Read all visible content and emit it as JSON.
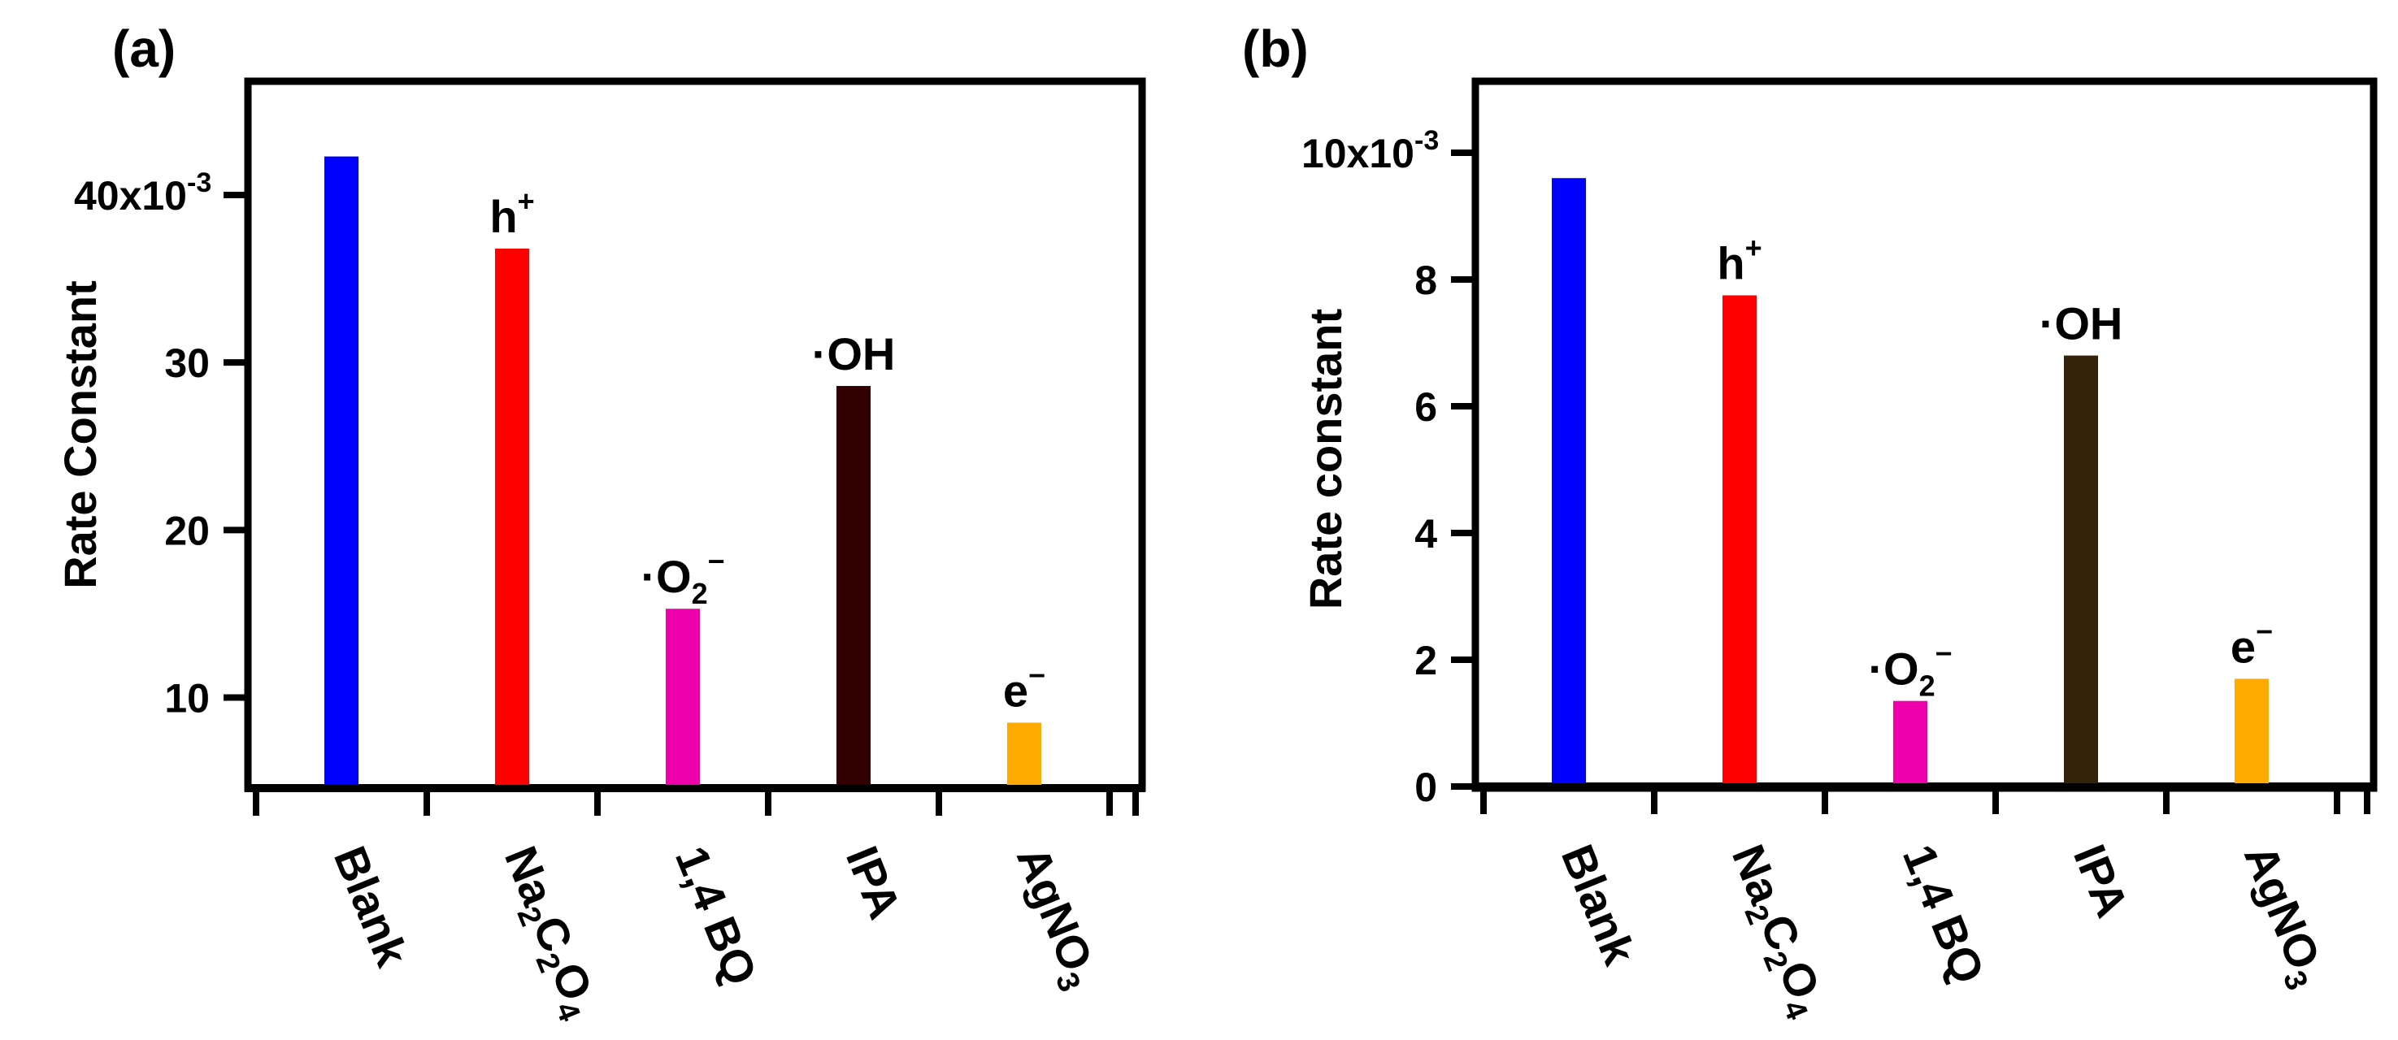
{
  "chart_data": [
    {
      "panel": "(a)",
      "type": "bar",
      "ylabel": "Rate Constant",
      "ylim": [
        4.5,
        46.5
      ],
      "yticks": [
        10,
        20,
        30,
        40
      ],
      "ytick_labels": [
        "10",
        "20",
        "30",
        "40x10"
      ],
      "ytick_exponent": "-3",
      "categories": [
        {
          "base": "Blank",
          "sub": ""
        },
        {
          "base": "Na",
          "sub": "2",
          "base2": "C",
          "sub2": "2",
          "base3": "O",
          "sub3": "4"
        },
        {
          "base": "1,4 BQ",
          "sub": ""
        },
        {
          "base": "IPA",
          "sub": ""
        },
        {
          "base": "AgNO",
          "sub": "3"
        }
      ],
      "values": [
        42.3,
        36.8,
        15.3,
        28.6,
        8.5
      ],
      "colors": [
        "#0000ff",
        "#ff0000",
        "#ee00aa",
        "#330000",
        "#ffaa00"
      ],
      "annotations": [
        {
          "base": "",
          "sup": ""
        },
        {
          "base": "h",
          "sup": "+"
        },
        {
          "base": "·O",
          "sub": "2",
          "sup": "−"
        },
        {
          "base": "·OH",
          "sup": ""
        },
        {
          "base": "e",
          "sup": "−"
        }
      ]
    },
    {
      "panel": "(b)",
      "type": "bar",
      "ylabel": "Rate constant",
      "ylim": [
        0,
        11.2
      ],
      "yticks": [
        0,
        2,
        4,
        6,
        8,
        10
      ],
      "ytick_labels": [
        "0",
        "2",
        "4",
        "6",
        "8",
        "10x10"
      ],
      "ytick_exponent": "-3",
      "categories": [
        {
          "base": "Blank",
          "sub": ""
        },
        {
          "base": "Na",
          "sub": "2",
          "base2": "C",
          "sub2": "2",
          "base3": "O",
          "sub3": "4"
        },
        {
          "base": "1,4 BQ",
          "sub": ""
        },
        {
          "base": "IPA",
          "sub": ""
        },
        {
          "base": "AgNO",
          "sub": "3"
        }
      ],
      "values": [
        9.6,
        7.75,
        1.35,
        6.8,
        1.7
      ],
      "colors": [
        "#0000ff",
        "#ff0000",
        "#ee00aa",
        "#33230a",
        "#ffaa00"
      ],
      "annotations": [
        {
          "base": "",
          "sup": ""
        },
        {
          "base": "h",
          "sup": "+"
        },
        {
          "base": "·O",
          "sub": "2",
          "sup": "−"
        },
        {
          "base": "·OH",
          "sup": ""
        },
        {
          "base": "e",
          "sup": "−"
        }
      ]
    }
  ]
}
